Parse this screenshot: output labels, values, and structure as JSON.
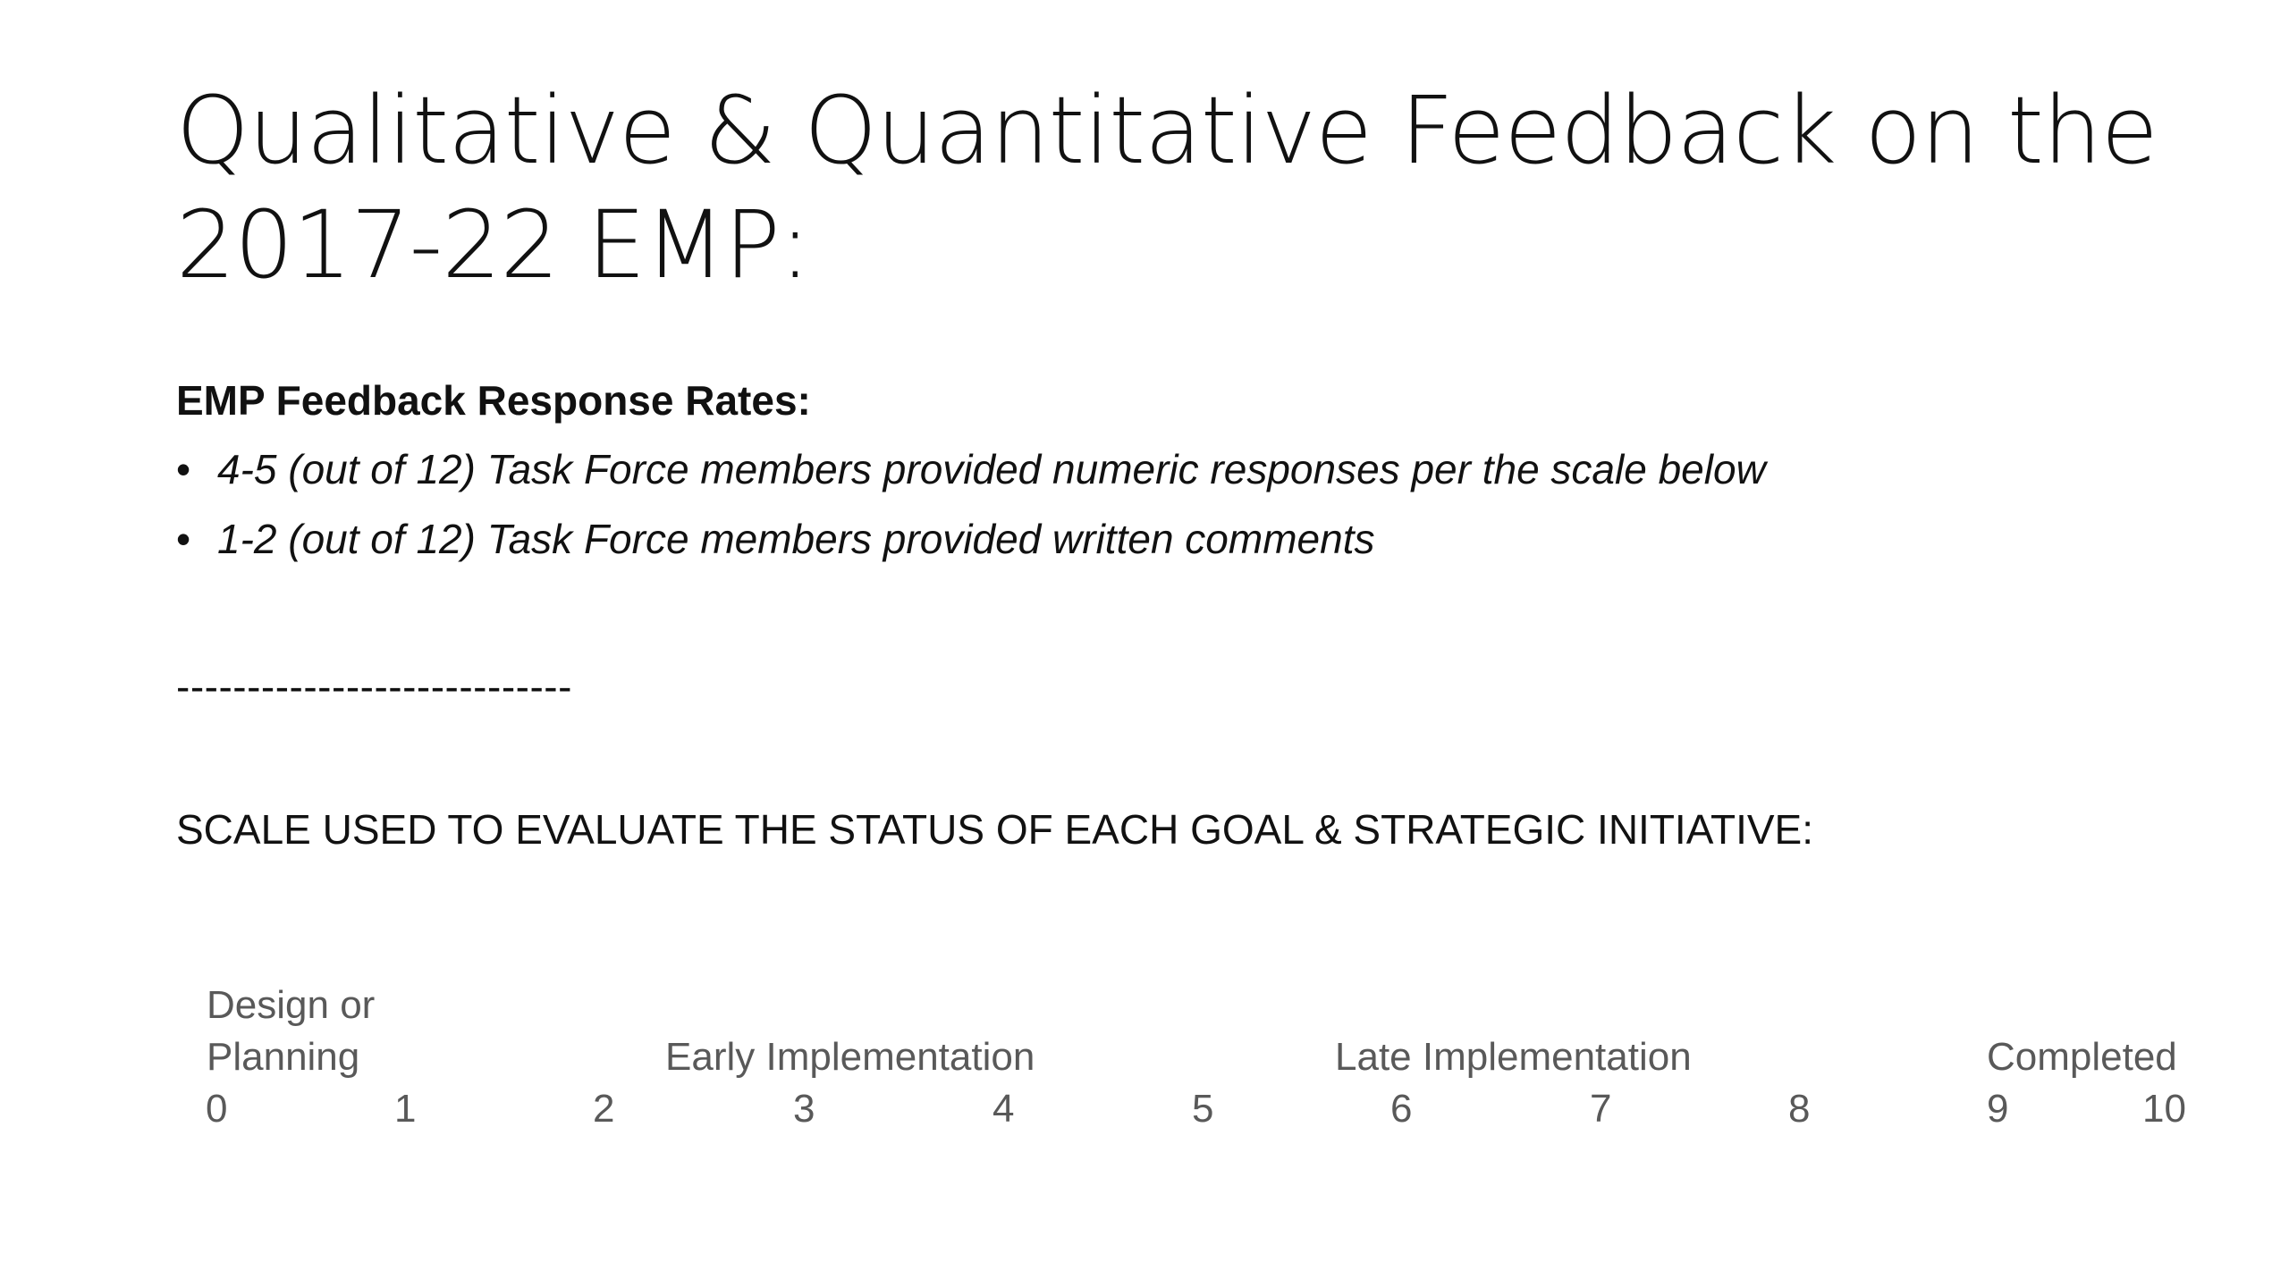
{
  "title": {
    "line1": "Qualitative & Quantitative Feedback on the",
    "line2": "2017-22 EMP:"
  },
  "response_rates": {
    "heading": "EMP Feedback Response Rates:",
    "bullet_glyph": "•",
    "items": [
      "4-5 (out of 12) Task Force members provided numeric responses per the scale below",
      "1-2 (out of 12) Task Force members provided written comments"
    ]
  },
  "separator": "----------------------------",
  "scale": {
    "heading": "SCALE USED TO EVALUATE THE STATUS OF EACH GOAL & STRATEGIC INITIATIVE:",
    "stage_labels": {
      "design_line1": "Design or",
      "design_line2": "Planning",
      "early": "Early Implementation",
      "late": "Late Implementation",
      "completed": "Completed"
    },
    "numbers": [
      "0",
      "1",
      "2",
      "3",
      "4",
      "5",
      "6",
      "7",
      "8",
      "9",
      "10"
    ]
  }
}
